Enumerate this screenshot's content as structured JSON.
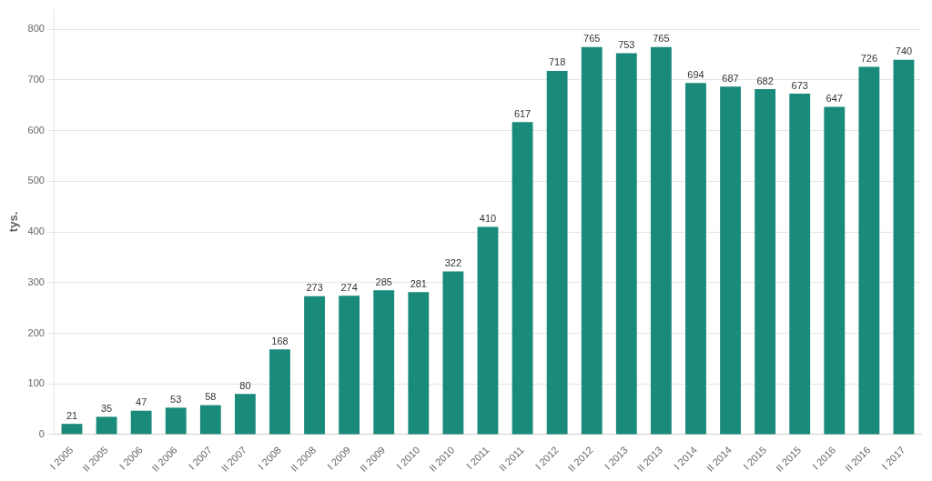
{
  "chart_data": {
    "type": "bar",
    "ylabel": "tys.",
    "categories": [
      "I 2005",
      "II 2005",
      "I 2006",
      "II 2006",
      "I 2007",
      "II 2007",
      "I 2008",
      "II 2008",
      "I 2009",
      "II 2009",
      "I 2010",
      "II 2010",
      "I 2011",
      "II 2011",
      "I 2012",
      "II 2012",
      "I 2013",
      "II 2013",
      "I 2014",
      "II 2014",
      "I 2015",
      "II 2015",
      "I 2016",
      "II 2016",
      "I 2017"
    ],
    "values": [
      21,
      35,
      47,
      53,
      58,
      80,
      168,
      273,
      274,
      285,
      281,
      322,
      410,
      617,
      718,
      765,
      753,
      765,
      694,
      687,
      682,
      673,
      647,
      726,
      740
    ],
    "color": "#1a8a7a",
    "ylim": [
      0,
      840
    ],
    "yticks": [
      0,
      100,
      200,
      300,
      400,
      500,
      600,
      700,
      800
    ],
    "grid": true,
    "data_labels": true
  }
}
